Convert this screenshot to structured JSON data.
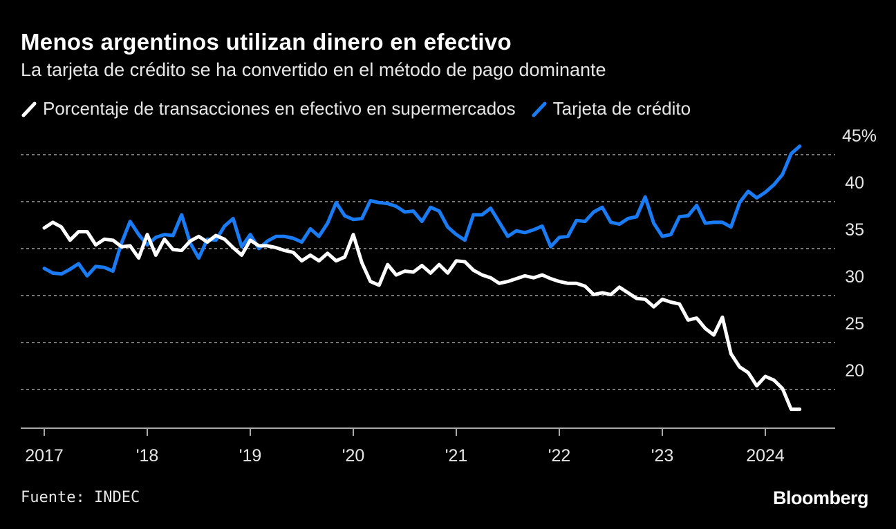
{
  "header": {
    "title": "Menos argentinos utilizan dinero en efectivo",
    "subtitle": "La tarjeta de crédito se ha convertido en el método de pago dominante"
  },
  "footer": {
    "source": "Fuente: INDEC",
    "logo": "Bloomberg"
  },
  "chart_data": {
    "type": "line",
    "title": "Menos argentinos utilizan dinero en efectivo",
    "subtitle": "La tarjeta de crédito se ha convertido en el método de pago dominante",
    "x_start": "2017-01",
    "x_frequency": "monthly",
    "x_tick_labels": [
      "2017",
      "'18",
      "'19",
      "'20",
      "'21",
      "'22",
      "'23",
      "2024"
    ],
    "y_tick_labels": [
      "45%",
      "40",
      "35",
      "30",
      "25",
      "20"
    ],
    "y_ticks": [
      45,
      40,
      35,
      30,
      25,
      20
    ],
    "ylim": [
      16,
      45
    ],
    "grid": "horizontal dotted",
    "legend_placement": "top-left",
    "colors": {
      "efectivo": "#ffffff",
      "tarjeta": "#1a7cf5",
      "grid": "#777777",
      "background": "#000000"
    },
    "series": [
      {
        "name": "Porcentaje de transacciones en efectivo en supermercados",
        "color": "#ffffff",
        "values": [
          37.2,
          37.8,
          37.3,
          35.9,
          36.8,
          36.8,
          35.4,
          36.0,
          35.9,
          35.2,
          35.3,
          34.0,
          36.5,
          34.3,
          36.0,
          34.9,
          34.8,
          35.8,
          36.3,
          35.7,
          36.4,
          36.0,
          35.1,
          34.3,
          35.9,
          35.3,
          35.3,
          35.1,
          34.8,
          34.6,
          33.7,
          34.3,
          33.7,
          34.5,
          33.7,
          34.1,
          36.5,
          33.5,
          31.5,
          31.1,
          33.3,
          32.2,
          32.6,
          32.5,
          33.2,
          32.4,
          33.3,
          32.4,
          33.7,
          33.6,
          32.7,
          32.2,
          31.9,
          31.3,
          31.5,
          31.8,
          32.1,
          31.9,
          32.2,
          31.8,
          31.5,
          31.3,
          31.3,
          31.0,
          30.1,
          30.3,
          30.1,
          30.9,
          30.3,
          29.7,
          29.6,
          28.8,
          29.6,
          29.3,
          29.1,
          27.4,
          27.6,
          26.5,
          25.8,
          27.7,
          23.8,
          22.4,
          21.8,
          20.4,
          21.4,
          21.0,
          20.1,
          17.9,
          17.9
        ]
      },
      {
        "name": "Tarjeta de crédito",
        "color": "#1a7cf5",
        "values": [
          32.9,
          32.4,
          32.3,
          32.8,
          33.4,
          32.1,
          33.1,
          33.0,
          32.6,
          35.6,
          37.9,
          36.5,
          35.4,
          36.2,
          36.5,
          36.4,
          38.6,
          35.6,
          34.0,
          36.0,
          35.9,
          37.4,
          38.2,
          35.2,
          36.5,
          35.0,
          35.8,
          36.3,
          36.3,
          36.1,
          35.7,
          37.1,
          36.3,
          37.7,
          39.9,
          38.5,
          38.1,
          38.2,
          40.1,
          39.9,
          39.8,
          39.5,
          38.9,
          39.0,
          37.9,
          39.4,
          39.0,
          37.3,
          36.5,
          35.9,
          38.6,
          38.6,
          39.3,
          37.8,
          36.3,
          36.9,
          36.7,
          37.0,
          37.4,
          35.2,
          36.2,
          36.3,
          38.0,
          37.9,
          38.9,
          39.4,
          37.8,
          37.6,
          38.2,
          38.4,
          40.5,
          37.7,
          36.3,
          36.5,
          38.4,
          38.5,
          39.6,
          37.7,
          37.8,
          37.8,
          37.3,
          39.9,
          41.1,
          40.4,
          41.0,
          41.8,
          42.9,
          45.1,
          45.9
        ]
      }
    ]
  }
}
